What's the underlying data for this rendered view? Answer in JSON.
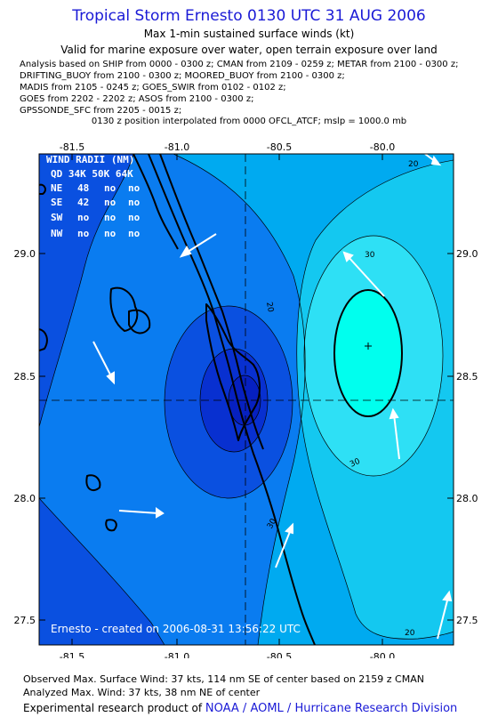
{
  "title": "Tropical Storm Ernesto 0130 UTC 31 AUG 2006",
  "subtitle": "Max 1-min sustained surface winds (kt)",
  "validity": "Valid for marine exposure over water, open terrain exposure over land",
  "analysis_lines": [
    "Analysis based on  SHIP from 0000 - 0300 z;  CMAN from 2109 - 0259 z;  METAR from 2100 - 0300 z;",
    "DRIFTING_BUOY from 2100 - 0300 z;  MOORED_BUOY from 2100 - 0300 z;",
    "MADIS from 2105 - 0245 z;  GOES_SWIR from 0102 - 0102 z;",
    "GOES from 2202 - 2202 z;  ASOS from 2100 - 0300 z;",
    "GPSSONDE_SFC from 2205 - 0015 z;"
  ],
  "position_note": "0130 z position interpolated from 0000 OFCL_ATCF; mslp = 1000.0 mb",
  "map": {
    "lon_ticks": [
      "-81.5",
      "-81.0",
      "-80.5",
      "-80.0"
    ],
    "lat_ticks": [
      "29.0",
      "28.5",
      "28.0",
      "27.5"
    ],
    "contour_labels": [
      "20",
      "20",
      "30",
      "30",
      "20",
      "30"
    ],
    "wind_radii": {
      "header": "WIND RADII (NM)",
      "columns": "QD 34K 50K 64K",
      "rows": [
        {
          "quad": "NE",
          "r34": "48",
          "r50": "no",
          "r64": "no"
        },
        {
          "quad": "SE",
          "r34": "42",
          "r50": "no",
          "r64": "no"
        },
        {
          "quad": "SW",
          "r34": "no",
          "r50": "no",
          "r64": "no"
        },
        {
          "quad": "NW",
          "r34": "no",
          "r50": "no",
          "r64": "no"
        }
      ]
    },
    "created_note": "Ernesto - created on 2006-08-31 13:56:22 UTC",
    "colors": {
      "band_20_25": "#00aaf0",
      "band_15_20": "#0a7cf0",
      "band_10_15": "#0a50e0",
      "band_5_10": "#0830d0",
      "band_0_5": "#0620c0",
      "band_25_30": "#14c8f0",
      "band_30_35": "#2ee0f5",
      "band_35_plus": "#00ffee"
    }
  },
  "footer": {
    "observed": "Observed Max. Surface Wind: 37 kts, 114 nm SE of center based on 2159 z CMAN",
    "analyzed": "Analyzed Max. Wind: 37 kts, 38 nm NE of center",
    "credit_prefix": "Experimental research product of ",
    "credit_org": "NOAA / AOML / Hurricane Research Division"
  }
}
